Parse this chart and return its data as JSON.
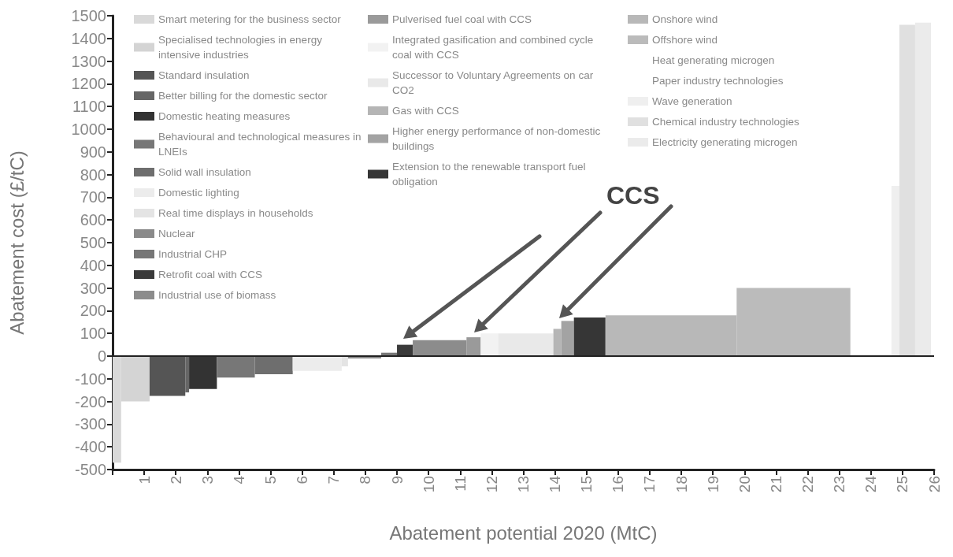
{
  "chart_data": {
    "type": "area",
    "xlabel": "Abatement potential 2020 (MtC)",
    "ylabel": "Abatement cost (£/tC)",
    "annotations": [
      "CCS"
    ],
    "xlim": [
      0,
      26
    ],
    "xticks": [
      {
        "value": 0,
        "label": null
      },
      1,
      2,
      3,
      4,
      5,
      6,
      7,
      8,
      9,
      10,
      11,
      12,
      13,
      14,
      15,
      16,
      17,
      18,
      19,
      20,
      21,
      22,
      23,
      24,
      25,
      26
    ],
    "ylim": [
      -500,
      1500
    ],
    "yticks": [
      -500,
      -400,
      -300,
      -200,
      -100,
      0,
      100,
      200,
      300,
      400,
      500,
      600,
      700,
      800,
      900,
      1000,
      1100,
      1200,
      1300,
      1400,
      1500
    ],
    "grid": false,
    "legend": "top",
    "ref_lines": [
      {
        "axis": "y",
        "value": 0
      }
    ],
    "series": [
      {
        "name": "Smart metering for the business sector",
        "color": "#d9d9d9",
        "x": [
          0,
          0.27
        ],
        "values": [
          -470,
          -470
        ]
      },
      {
        "name": "Specialised technologies in energy intensive industries",
        "color": "#d4d4d4",
        "x": [
          0.27,
          1.17
        ],
        "values": [
          -200,
          -200
        ]
      },
      {
        "name": "Standard insulation",
        "color": "#555555",
        "x": [
          1.17,
          2.3
        ],
        "values": [
          -175,
          -175
        ]
      },
      {
        "name": "Better billing for the domestic sector",
        "color": "#666666",
        "x": [
          2.3,
          2.42
        ],
        "values": [
          -160,
          -160
        ]
      },
      {
        "name": "Domestic heating measures",
        "color": "#333333",
        "x": [
          2.42,
          3.3
        ],
        "values": [
          -145,
          -145
        ]
      },
      {
        "name": "Behavioural and technological measures in LNEIs",
        "color": "#777777",
        "x": [
          3.3,
          4.5
        ],
        "values": [
          -95,
          -95
        ]
      },
      {
        "name": "Solid wall insulation",
        "color": "#6e6e6e",
        "x": [
          4.5,
          5.7
        ],
        "values": [
          -80,
          -80
        ]
      },
      {
        "name": "Domestic lighting",
        "color": "#ececec",
        "x": [
          5.7,
          7.25
        ],
        "values": [
          -65,
          -65
        ]
      },
      {
        "name": "Real time displays in households",
        "color": "#e4e4e4",
        "x": [
          7.25,
          7.45
        ],
        "values": [
          -45,
          -45
        ]
      },
      {
        "name": "Nuclear",
        "color": "#8a8a8a",
        "x": [
          7.45,
          8.5
        ],
        "values": [
          -10,
          -10
        ]
      },
      {
        "name": "Industrial CHP",
        "color": "#777777",
        "x": [
          8.5,
          9.0
        ],
        "values": [
          15,
          15
        ]
      },
      {
        "name": "Retrofit coal with CCS",
        "color": "#3a3a3a",
        "x": [
          9.0,
          9.5
        ],
        "values": [
          50,
          50
        ]
      },
      {
        "name": "Industrial use of biomass",
        "color": "#8c8c8c",
        "x": [
          9.5,
          11.2
        ],
        "values": [
          70,
          70
        ]
      },
      {
        "name": "Pulverised fuel coal with CCS",
        "color": "#9a9a9a",
        "x": [
          11.2,
          11.65
        ],
        "values": [
          83,
          83
        ]
      },
      {
        "name": "Integrated gasification and combined cycle coal with CCS",
        "color": "#f2f2f2",
        "x": [
          11.65,
          12.2
        ],
        "values": [
          100,
          100
        ]
      },
      {
        "name": "Successor to Voluntary Agreements on car CO2",
        "color": "#e9e9e9",
        "x": [
          12.2,
          13.95
        ],
        "values": [
          100,
          100
        ]
      },
      {
        "name": "Gas with CCS",
        "color": "#b5b5b5",
        "x": [
          13.95,
          14.2
        ],
        "values": [
          120,
          120
        ]
      },
      {
        "name": "Higher energy performance of non-domestic buildings",
        "color": "#a3a3a3",
        "x": [
          14.2,
          14.6
        ],
        "values": [
          155,
          155
        ]
      },
      {
        "name": "Extension to the renewable transport fuel obligation",
        "color": "#363636",
        "x": [
          14.6,
          15.6
        ],
        "values": [
          170,
          170
        ]
      },
      {
        "name": "Onshore wind",
        "color": "#b8b8b8",
        "x": [
          15.6,
          19.75
        ],
        "values": [
          180,
          180
        ]
      },
      {
        "name": "Offshore wind",
        "color": "#bbbbbb",
        "x": [
          19.75,
          23.35
        ],
        "values": [
          300,
          300
        ]
      },
      {
        "name": "Heat generating microgen"
      },
      {
        "name": "Paper industry technologies"
      },
      {
        "name": "Wave generation",
        "color": "#efefef",
        "x": [
          24.65,
          24.9
        ],
        "values": [
          750,
          750
        ]
      },
      {
        "name": "Chemical industry technologies",
        "color": "#e0e0e0",
        "x": [
          24.9,
          25.4
        ],
        "values": [
          1460,
          1460
        ]
      },
      {
        "name": "Electricity generating microgen",
        "color": "#ebebeb",
        "x": [
          25.4,
          25.9
        ],
        "values": [
          1470,
          1470
        ]
      }
    ]
  }
}
